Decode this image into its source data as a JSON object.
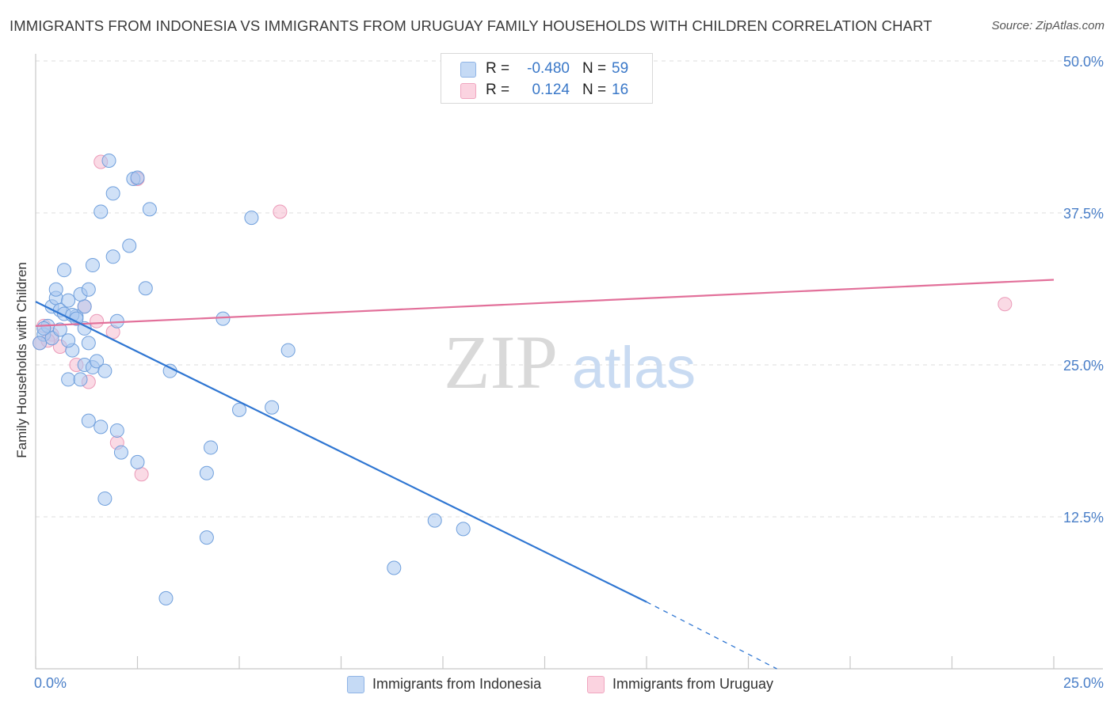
{
  "title": "IMMIGRANTS FROM INDONESIA VS IMMIGRANTS FROM URUGUAY FAMILY HOUSEHOLDS WITH CHILDREN CORRELATION CHART",
  "source": "Source: ZipAtlas.com",
  "watermark": {
    "zip": "ZIP",
    "atlas": "atlas"
  },
  "legend_top": {
    "rows": [
      {
        "r_label": "R =",
        "r_value": "-0.480",
        "n_label": "N =",
        "n_value": "59",
        "color": "#a9c8f0"
      },
      {
        "r_label": "R =",
        "r_value": "0.124",
        "n_label": "N =",
        "n_value": "16",
        "color": "#f6bcd0"
      }
    ]
  },
  "legend_bottom": [
    {
      "label": "Immigrants from Indonesia",
      "color": "#a9c8f0"
    },
    {
      "label": "Immigrants from Uruguay",
      "color": "#f6bcd0"
    }
  ],
  "chart_data": {
    "type": "scatter",
    "title": "IMMIGRANTS FROM INDONESIA VS IMMIGRANTS FROM URUGUAY FAMILY HOUSEHOLDS WITH CHILDREN CORRELATION CHART",
    "xlabel": "",
    "ylabel": "Family Households with Children",
    "xlim": [
      0,
      25
    ],
    "ylim": [
      0,
      50
    ],
    "x_tick_labels": [
      "0.0%",
      "25.0%"
    ],
    "y_ticks": [
      12.5,
      25.0,
      37.5,
      50.0
    ],
    "y_tick_labels": [
      "12.5%",
      "25.0%",
      "37.5%",
      "50.0%"
    ],
    "colors": {
      "indonesia_fill": "#a9c8f0",
      "indonesia_line": "#2f76d2",
      "uruguay_fill": "#f6bcd0",
      "uruguay_line": "#e2709a",
      "axis_label": "#4a7fc8"
    },
    "series": [
      {
        "name": "Immigrants from Indonesia",
        "points": [
          [
            0.2,
            27.5
          ],
          [
            0.1,
            26.8
          ],
          [
            0.3,
            28.2
          ],
          [
            0.4,
            29.8
          ],
          [
            0.5,
            30.5
          ],
          [
            0.6,
            29.5
          ],
          [
            0.5,
            31.2
          ],
          [
            0.7,
            29.2
          ],
          [
            0.8,
            30.3
          ],
          [
            0.7,
            32.8
          ],
          [
            0.9,
            26.2
          ],
          [
            0.8,
            27.0
          ],
          [
            1.0,
            29.0
          ],
          [
            1.2,
            29.8
          ],
          [
            1.1,
            30.8
          ],
          [
            1.2,
            28.0
          ],
          [
            1.3,
            26.8
          ],
          [
            1.2,
            25.0
          ],
          [
            1.4,
            24.8
          ],
          [
            1.5,
            25.3
          ],
          [
            1.7,
            24.5
          ],
          [
            0.8,
            23.8
          ],
          [
            1.1,
            23.8
          ],
          [
            1.3,
            31.2
          ],
          [
            1.4,
            33.2
          ],
          [
            1.6,
            37.6
          ],
          [
            1.8,
            41.8
          ],
          [
            1.9,
            33.9
          ],
          [
            1.9,
            39.1
          ],
          [
            2.0,
            28.6
          ],
          [
            2.3,
            34.8
          ],
          [
            2.4,
            40.3
          ],
          [
            2.5,
            40.4
          ],
          [
            2.7,
            31.3
          ],
          [
            2.8,
            37.8
          ],
          [
            3.3,
            24.5
          ],
          [
            1.3,
            20.4
          ],
          [
            1.6,
            19.9
          ],
          [
            2.0,
            19.6
          ],
          [
            2.1,
            17.8
          ],
          [
            2.5,
            17.0
          ],
          [
            1.7,
            14.0
          ],
          [
            4.2,
            16.1
          ],
          [
            4.3,
            18.2
          ],
          [
            4.6,
            28.8
          ],
          [
            5.0,
            21.3
          ],
          [
            5.3,
            37.1
          ],
          [
            5.8,
            21.5
          ],
          [
            6.2,
            26.2
          ],
          [
            4.2,
            10.8
          ],
          [
            3.2,
            5.8
          ],
          [
            8.8,
            8.3
          ],
          [
            9.8,
            12.2
          ],
          [
            10.5,
            11.5
          ],
          [
            0.4,
            27.2
          ],
          [
            0.6,
            27.9
          ],
          [
            0.2,
            28.0
          ],
          [
            0.9,
            29.1
          ],
          [
            1.0,
            28.8
          ]
        ],
        "trend_solid": [
          [
            0.0,
            30.2
          ],
          [
            15.0,
            5.5
          ]
        ],
        "trend_dashed": [
          [
            15.0,
            5.5
          ],
          [
            18.2,
            0.0
          ]
        ]
      },
      {
        "name": "Immigrants from Uruguay",
        "points": [
          [
            0.1,
            26.8
          ],
          [
            0.2,
            28.2
          ],
          [
            0.4,
            27.5
          ],
          [
            0.6,
            26.5
          ],
          [
            1.0,
            25.0
          ],
          [
            1.2,
            29.8
          ],
          [
            1.3,
            23.6
          ],
          [
            1.5,
            28.6
          ],
          [
            1.6,
            41.7
          ],
          [
            1.9,
            27.7
          ],
          [
            2.0,
            18.6
          ],
          [
            2.5,
            40.3
          ],
          [
            2.6,
            16.0
          ],
          [
            6.0,
            37.6
          ],
          [
            23.8,
            30.0
          ],
          [
            0.3,
            27.0
          ]
        ],
        "trend_solid": [
          [
            0.0,
            28.2
          ],
          [
            25.0,
            32.0
          ]
        ]
      }
    ]
  }
}
